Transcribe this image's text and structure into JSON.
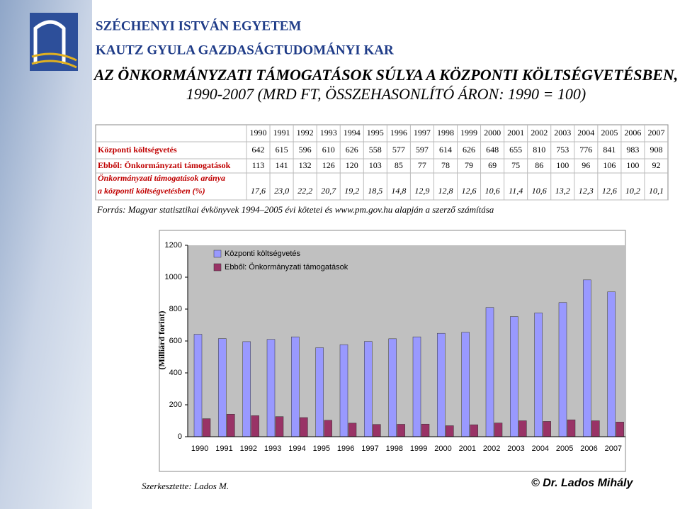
{
  "header": {
    "university": "SZÉCHENYI ISTVÁN EGYETEM",
    "faculty": "KAUTZ GYULA GAZDASÁGTUDOMÁNYI KAR"
  },
  "title": [
    "AZ ÖNKORMÁNYZATI TÁMOGATÁSOK SÚLYA A KÖZPONTI KÖLTSÉGVETÉSBEN,",
    "1990-2007 (MRD FT, ÖSSZEHASONLÍTÓ ÁRON: 1990 = 100)"
  ],
  "table": {
    "ratio_label": [
      "Önkormányzati támogatások aránya",
      "a központi költségvetésben (%)"
    ],
    "ratio": [
      "17,6",
      "23,0",
      "22,2",
      "20,7",
      "19,2",
      "18,5",
      "14,8",
      "12,9",
      "12,8",
      "12,6",
      "10,6",
      "11,4",
      "10,6",
      "13,2",
      "12,3",
      "12,6",
      "10,2",
      "10,1"
    ]
  },
  "source": "Forrás: Magyar statisztikai évkönyvek 1994–2005 évi kötetei és www.pm.gov.hu alapján a szerző számítása",
  "chart_data": {
    "type": "bar",
    "y_label": "(Milliárd forint)",
    "categories": [
      "1990",
      "1991",
      "1992",
      "1993",
      "1994",
      "1995",
      "1996",
      "1997",
      "1998",
      "1999",
      "2000",
      "2001",
      "2002",
      "2003",
      "2004",
      "2005",
      "2006",
      "2007"
    ],
    "series": [
      {
        "name": "Központi költségvetés",
        "color": "#9999ff",
        "values": [
          642,
          615,
          596,
          610,
          626,
          558,
          577,
          597,
          614,
          626,
          648,
          655,
          810,
          753,
          776,
          841,
          983,
          908
        ]
      },
      {
        "name": "Ebből: Önkormányzati támogatások",
        "color": "#993366",
        "values": [
          113,
          141,
          132,
          126,
          120,
          103,
          85,
          77,
          78,
          79,
          69,
          75,
          86,
          100,
          96,
          106,
          100,
          92
        ]
      }
    ],
    "ylim": [
      0,
      1200
    ],
    "yticks": [
      0,
      200,
      400,
      600,
      800,
      1000,
      1200
    ],
    "grid": false
  },
  "footer": {
    "editor": "Szerkesztette: Lados M.",
    "copyright": "© Dr. Lados Mihály"
  }
}
